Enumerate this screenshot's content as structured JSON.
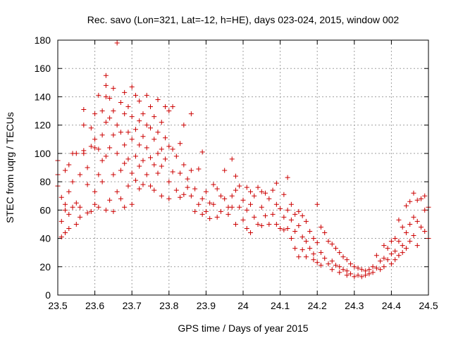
{
  "chart_data": {
    "type": "scatter",
    "title": "Rec. savo (Lon=321, Lat=-12, h=HE), days 023-024, 2015, window 002",
    "xlabel": "GPS time / Days of year 2015",
    "ylabel": "STEC from uqrg / TECUs",
    "xlim": [
      23.5,
      24.5
    ],
    "ylim": [
      0,
      180
    ],
    "xticks": [
      23.5,
      23.6,
      23.7,
      23.8,
      23.9,
      24.0,
      24.1,
      24.2,
      24.3,
      24.4,
      24.5
    ],
    "xtick_labels": [
      "23.5",
      "23.6",
      "23.7",
      "23.8",
      "23.9",
      "24",
      "24.1",
      "24.2",
      "24.3",
      "24.4",
      "24.5"
    ],
    "yticks": [
      0,
      20,
      40,
      60,
      80,
      100,
      120,
      140,
      160,
      180
    ],
    "ytick_labels": [
      "0",
      "20",
      "40",
      "60",
      "80",
      "100",
      "120",
      "140",
      "160",
      "180"
    ],
    "grid": true,
    "marker": "+",
    "color": "#cc0000",
    "series": [
      {
        "name": "STEC",
        "points": [
          [
            23.5,
            95
          ],
          [
            23.5,
            85
          ],
          [
            23.5,
            77
          ],
          [
            23.51,
            41
          ],
          [
            23.51,
            52
          ],
          [
            23.51,
            69
          ],
          [
            23.52,
            60
          ],
          [
            23.52,
            64
          ],
          [
            23.52,
            88
          ],
          [
            23.52,
            44
          ],
          [
            23.53,
            47
          ],
          [
            23.53,
            57
          ],
          [
            23.53,
            73
          ],
          [
            23.53,
            92
          ],
          [
            23.54,
            80
          ],
          [
            23.54,
            100
          ],
          [
            23.54,
            62
          ],
          [
            23.55,
            50
          ],
          [
            23.55,
            65
          ],
          [
            23.55,
            100
          ],
          [
            23.56,
            85
          ],
          [
            23.56,
            62
          ],
          [
            23.56,
            55
          ],
          [
            23.57,
            131
          ],
          [
            23.57,
            120
          ],
          [
            23.57,
            100
          ],
          [
            23.57,
            102
          ],
          [
            23.58,
            90
          ],
          [
            23.58,
            58
          ],
          [
            23.58,
            78
          ],
          [
            23.59,
            118
          ],
          [
            23.59,
            105
          ],
          [
            23.59,
            59
          ],
          [
            23.6,
            128
          ],
          [
            23.6,
            110
          ],
          [
            23.6,
            104
          ],
          [
            23.6,
            73
          ],
          [
            23.6,
            64
          ],
          [
            23.61,
            141
          ],
          [
            23.61,
            103
          ],
          [
            23.61,
            85
          ],
          [
            23.61,
            62
          ],
          [
            23.62,
            130
          ],
          [
            23.62,
            113
          ],
          [
            23.62,
            95
          ],
          [
            23.62,
            80
          ],
          [
            23.63,
            155
          ],
          [
            23.63,
            148
          ],
          [
            23.63,
            140
          ],
          [
            23.63,
            122
          ],
          [
            23.63,
            98
          ],
          [
            23.63,
            60
          ],
          [
            23.64,
            139
          ],
          [
            23.64,
            125
          ],
          [
            23.64,
            104
          ],
          [
            23.64,
            67
          ],
          [
            23.65,
            146
          ],
          [
            23.65,
            130
          ],
          [
            23.65,
            113
          ],
          [
            23.65,
            85
          ],
          [
            23.65,
            59
          ],
          [
            23.66,
            178
          ],
          [
            23.66,
            120
          ],
          [
            23.66,
            100
          ],
          [
            23.66,
            73
          ],
          [
            23.67,
            136
          ],
          [
            23.67,
            115
          ],
          [
            23.67,
            88
          ],
          [
            23.67,
            68
          ],
          [
            23.68,
            143
          ],
          [
            23.68,
            128
          ],
          [
            23.68,
            106
          ],
          [
            23.68,
            93
          ],
          [
            23.68,
            62
          ],
          [
            23.69,
            133
          ],
          [
            23.69,
            115
          ],
          [
            23.69,
            96
          ],
          [
            23.69,
            77
          ],
          [
            23.7,
            147
          ],
          [
            23.7,
            126
          ],
          [
            23.7,
            110
          ],
          [
            23.7,
            86
          ],
          [
            23.7,
            64
          ],
          [
            23.71,
            141
          ],
          [
            23.71,
            117
          ],
          [
            23.71,
            98
          ],
          [
            23.71,
            81
          ],
          [
            23.72,
            137
          ],
          [
            23.72,
            123
          ],
          [
            23.72,
            106
          ],
          [
            23.72,
            91
          ],
          [
            23.72,
            75
          ],
          [
            23.73,
            128
          ],
          [
            23.73,
            112
          ],
          [
            23.73,
            95
          ],
          [
            23.73,
            78
          ],
          [
            23.74,
            141
          ],
          [
            23.74,
            120
          ],
          [
            23.74,
            104
          ],
          [
            23.74,
            85
          ],
          [
            23.75,
            133
          ],
          [
            23.75,
            118
          ],
          [
            23.75,
            97
          ],
          [
            23.75,
            77
          ],
          [
            23.76,
            126
          ],
          [
            23.76,
            110
          ],
          [
            23.76,
            92
          ],
          [
            23.76,
            74
          ],
          [
            23.77,
            138
          ],
          [
            23.77,
            115
          ],
          [
            23.77,
            100
          ],
          [
            23.77,
            86
          ],
          [
            23.78,
            122
          ],
          [
            23.78,
            103
          ],
          [
            23.78,
            91
          ],
          [
            23.78,
            70
          ],
          [
            23.79,
            133
          ],
          [
            23.79,
            111
          ],
          [
            23.79,
            96
          ],
          [
            23.8,
            130
          ],
          [
            23.8,
            105
          ],
          [
            23.8,
            80
          ],
          [
            23.8,
            68
          ],
          [
            23.81,
            133
          ],
          [
            23.81,
            103
          ],
          [
            23.81,
            87
          ],
          [
            23.82,
            98
          ],
          [
            23.82,
            74
          ],
          [
            23.83,
            107
          ],
          [
            23.83,
            86
          ],
          [
            23.83,
            69
          ],
          [
            23.84,
            120
          ],
          [
            23.84,
            92
          ],
          [
            23.84,
            71
          ],
          [
            23.85,
            82
          ],
          [
            23.85,
            76
          ],
          [
            23.86,
            128
          ],
          [
            23.86,
            88
          ],
          [
            23.86,
            70
          ],
          [
            23.87,
            75
          ],
          [
            23.87,
            59
          ],
          [
            23.88,
            89
          ],
          [
            23.88,
            64
          ],
          [
            23.89,
            101
          ],
          [
            23.89,
            68
          ],
          [
            23.89,
            57
          ],
          [
            23.9,
            73
          ],
          [
            23.9,
            59
          ],
          [
            23.91,
            65
          ],
          [
            23.91,
            54
          ],
          [
            23.92,
            78
          ],
          [
            23.92,
            64
          ],
          [
            23.93,
            75
          ],
          [
            23.93,
            55
          ],
          [
            23.94,
            70
          ],
          [
            23.94,
            59
          ],
          [
            23.95,
            88
          ],
          [
            23.95,
            68
          ],
          [
            23.96,
            62
          ],
          [
            23.96,
            57
          ],
          [
            23.97,
            96
          ],
          [
            23.97,
            70
          ],
          [
            23.97,
            62
          ],
          [
            23.98,
            84
          ],
          [
            23.98,
            74
          ],
          [
            23.98,
            50
          ],
          [
            23.99,
            77
          ],
          [
            23.99,
            62
          ],
          [
            24.0,
            67
          ],
          [
            24.0,
            53
          ],
          [
            24.01,
            76
          ],
          [
            24.01,
            60
          ],
          [
            24.01,
            47
          ],
          [
            24.02,
            73
          ],
          [
            24.02,
            64
          ],
          [
            24.02,
            44
          ],
          [
            24.03,
            70
          ],
          [
            24.03,
            55
          ],
          [
            24.04,
            76
          ],
          [
            24.04,
            50
          ],
          [
            24.05,
            73
          ],
          [
            24.05,
            62
          ],
          [
            24.05,
            49
          ],
          [
            24.06,
            72
          ],
          [
            24.06,
            56
          ],
          [
            24.07,
            68
          ],
          [
            24.07,
            50
          ],
          [
            24.08,
            74
          ],
          [
            24.08,
            57
          ],
          [
            24.09,
            79
          ],
          [
            24.09,
            64
          ],
          [
            24.09,
            50
          ],
          [
            24.1,
            61
          ],
          [
            24.1,
            47
          ],
          [
            24.11,
            71
          ],
          [
            24.11,
            55
          ],
          [
            24.11,
            46
          ],
          [
            24.12,
            83
          ],
          [
            24.12,
            60
          ],
          [
            24.12,
            47
          ],
          [
            24.13,
            64
          ],
          [
            24.13,
            53
          ],
          [
            24.13,
            40
          ],
          [
            24.14,
            57
          ],
          [
            24.14,
            45
          ],
          [
            24.14,
            33
          ],
          [
            24.15,
            59
          ],
          [
            24.15,
            49
          ],
          [
            24.15,
            27
          ],
          [
            24.16,
            56
          ],
          [
            24.16,
            41
          ],
          [
            24.16,
            32
          ],
          [
            24.17,
            52
          ],
          [
            24.17,
            38
          ],
          [
            24.17,
            27
          ],
          [
            24.18,
            45
          ],
          [
            24.18,
            33
          ],
          [
            24.19,
            40
          ],
          [
            24.19,
            29
          ],
          [
            24.19,
            25
          ],
          [
            24.2,
            64
          ],
          [
            24.2,
            37
          ],
          [
            24.2,
            23
          ],
          [
            24.21,
            48
          ],
          [
            24.21,
            30
          ],
          [
            24.21,
            21
          ],
          [
            24.22,
            44
          ],
          [
            24.22,
            26
          ],
          [
            24.23,
            38
          ],
          [
            24.23,
            22
          ],
          [
            24.24,
            36
          ],
          [
            24.24,
            24
          ],
          [
            24.24,
            18
          ],
          [
            24.25,
            33
          ],
          [
            24.25,
            21
          ],
          [
            24.26,
            30
          ],
          [
            24.26,
            20
          ],
          [
            24.26,
            16
          ],
          [
            24.27,
            27
          ],
          [
            24.27,
            18
          ],
          [
            24.28,
            25
          ],
          [
            24.28,
            17
          ],
          [
            24.28,
            14
          ],
          [
            24.29,
            22
          ],
          [
            24.29,
            15
          ],
          [
            24.3,
            20
          ],
          [
            24.3,
            13
          ],
          [
            24.31,
            19
          ],
          [
            24.31,
            14
          ],
          [
            24.32,
            18
          ],
          [
            24.32,
            13
          ],
          [
            24.33,
            17
          ],
          [
            24.33,
            14
          ],
          [
            24.34,
            18
          ],
          [
            24.34,
            15
          ],
          [
            24.35,
            20
          ],
          [
            24.35,
            16
          ],
          [
            24.36,
            28
          ],
          [
            24.36,
            19
          ],
          [
            24.37,
            24
          ],
          [
            24.37,
            18
          ],
          [
            24.38,
            35
          ],
          [
            24.38,
            26
          ],
          [
            24.38,
            20
          ],
          [
            24.39,
            33
          ],
          [
            24.39,
            25
          ],
          [
            24.4,
            38
          ],
          [
            24.4,
            29
          ],
          [
            24.4,
            22
          ],
          [
            24.41,
            40
          ],
          [
            24.41,
            31
          ],
          [
            24.41,
            25
          ],
          [
            24.42,
            53
          ],
          [
            24.42,
            38
          ],
          [
            24.42,
            28
          ],
          [
            24.43,
            48
          ],
          [
            24.43,
            35
          ],
          [
            24.43,
            30
          ],
          [
            24.44,
            63
          ],
          [
            24.44,
            44
          ],
          [
            24.44,
            33
          ],
          [
            24.45,
            66
          ],
          [
            24.45,
            50
          ],
          [
            24.45,
            38
          ],
          [
            24.46,
            72
          ],
          [
            24.46,
            55
          ],
          [
            24.46,
            42
          ],
          [
            24.47,
            67
          ],
          [
            24.47,
            52
          ],
          [
            24.47,
            35
          ],
          [
            24.48,
            68
          ],
          [
            24.48,
            48
          ],
          [
            24.49,
            70
          ],
          [
            24.49,
            60
          ],
          [
            24.49,
            45
          ],
          [
            24.5,
            62
          ],
          [
            24.5,
            40
          ]
        ]
      }
    ]
  }
}
